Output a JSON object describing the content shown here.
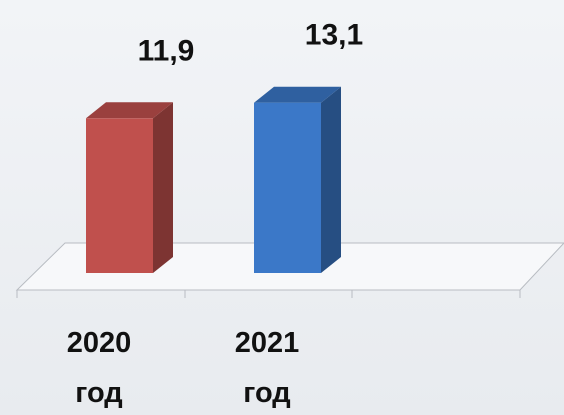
{
  "chart_data": {
    "type": "bar3d",
    "categories": [
      "2020 год",
      "2021 год"
    ],
    "values": [
      11.9,
      13.1
    ],
    "value_labels": [
      "11,9",
      "13,1"
    ],
    "colors": [
      "#c0504d",
      "#3b78c8"
    ]
  }
}
